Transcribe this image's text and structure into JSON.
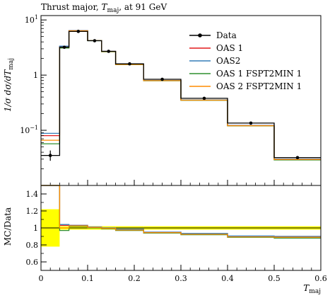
{
  "chart_data": {
    "type": "line",
    "title": "Thrust major, T_maj, at 91 GeV",
    "title_parts": {
      "prefix": "Thrust major, ",
      "symbol": "T",
      "subscript": "maj",
      "suffix": ", at 91 GeV"
    },
    "xlabel": "T_maj",
    "xlabel_parts": {
      "symbol": "T",
      "subscript": "maj"
    },
    "ylabel": "1/σ dσ/dT_maj",
    "ylabel_parts": {
      "main": "1/σ dσ/dT",
      "subscript": "maj"
    },
    "xlim": [
      0,
      0.6
    ],
    "ylim_main": [
      0.01,
      12
    ],
    "yscale_main": "log",
    "ylim_ratio": [
      0.5,
      1.5
    ],
    "ratio_ylabel": "MC/Data",
    "legend_position": "top-right",
    "x_ticks": [
      "0",
      "0.1",
      "0.2",
      "0.3",
      "0.4",
      "0.5",
      "0.6"
    ],
    "x_tick_values": [
      0,
      0.1,
      0.2,
      0.3,
      0.4,
      0.5,
      0.6
    ],
    "y_ticks_main": [
      {
        "value": 10,
        "base": "10",
        "exp": "1"
      },
      {
        "value": 1,
        "base": "1",
        "exp": ""
      },
      {
        "value": 0.1,
        "base": "10",
        "exp": "−1"
      }
    ],
    "y_ticks_ratio": [
      "0.6",
      "0.8",
      "1",
      "1.2",
      "1.4"
    ],
    "y_tick_ratio_values": [
      0.6,
      0.8,
      1.0,
      1.2,
      1.4
    ],
    "bin_edges": [
      0,
      0.04,
      0.06,
      0.1,
      0.13,
      0.16,
      0.22,
      0.3,
      0.4,
      0.5,
      0.6
    ],
    "data": {
      "name": "Data",
      "color": "#000000",
      "x": [
        0.02,
        0.05,
        0.08,
        0.115,
        0.145,
        0.19,
        0.26,
        0.35,
        0.45,
        0.55
      ],
      "y": [
        0.035,
        3.2,
        6.2,
        4.2,
        2.7,
        1.6,
        0.84,
        0.38,
        0.135,
        0.032
      ],
      "yerr_low": [
        0.007,
        0.15,
        0.2,
        0.15,
        0.1,
        0.05,
        0.03,
        0.015,
        0.006,
        0.002
      ],
      "yerr_high": [
        0.008,
        0.15,
        0.2,
        0.15,
        0.1,
        0.05,
        0.03,
        0.015,
        0.006,
        0.002
      ]
    },
    "series": [
      {
        "name": "OAS 1",
        "color": "#e41a1c",
        "values": [
          0.08,
          3.3,
          6.4,
          4.25,
          2.7,
          1.57,
          0.8,
          0.355,
          0.122,
          0.03
        ],
        "ratio": [
          2.3,
          1.03,
          1.03,
          1.01,
          1.0,
          0.98,
          0.95,
          0.93,
          0.9,
          0.9
        ]
      },
      {
        "name": "OAS2",
        "color": "#377eb8",
        "values": [
          0.088,
          3.35,
          6.4,
          4.25,
          2.7,
          1.58,
          0.8,
          0.355,
          0.122,
          0.03
        ],
        "ratio": [
          2.5,
          1.04,
          1.03,
          1.01,
          1.0,
          0.985,
          0.95,
          0.935,
          0.905,
          0.9
        ]
      },
      {
        "name": "OAS 1 FSPT2MIN 1",
        "color": "#2f8f2f",
        "values": [
          0.057,
          3.1,
          6.3,
          4.2,
          2.65,
          1.55,
          0.79,
          0.35,
          0.12,
          0.029
        ],
        "ratio": [
          1.63,
          0.97,
          1.02,
          1.0,
          0.99,
          0.97,
          0.94,
          0.92,
          0.89,
          0.88
        ]
      },
      {
        "name": "OAS 2 FSPT2MIN 1",
        "color": "#ff8c00",
        "values": [
          0.066,
          3.2,
          6.35,
          4.22,
          2.68,
          1.56,
          0.795,
          0.352,
          0.121,
          0.0295
        ],
        "ratio": [
          1.9,
          1.0,
          1.025,
          1.005,
          0.995,
          0.975,
          0.945,
          0.925,
          0.895,
          0.89
        ]
      }
    ],
    "data_uncertainty_band": {
      "color": "#ffff00",
      "half_width": [
        0.22,
        0.02,
        0.02,
        0.02,
        0.02,
        0.02,
        0.02,
        0.02,
        0.02,
        0.02
      ]
    }
  }
}
